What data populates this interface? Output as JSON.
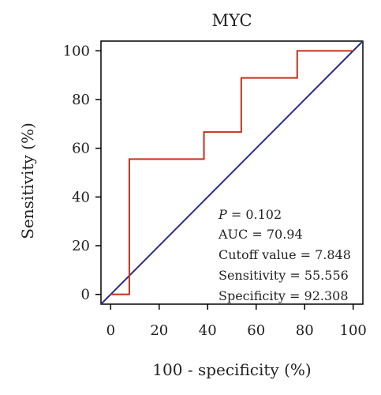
{
  "chart_data": {
    "type": "line",
    "title": "MYC",
    "xlabel": "100 - specificity (%)",
    "ylabel": "Sensitivity (%)",
    "xlim": [
      -4,
      104
    ],
    "ylim": [
      -4,
      104
    ],
    "xticks": [
      0,
      20,
      40,
      60,
      80,
      100
    ],
    "yticks": [
      0,
      20,
      40,
      60,
      80,
      100
    ],
    "grid": false,
    "series": [
      {
        "color": "#c4331a",
        "x": [
          0,
          7.69,
          7.69,
          38.46,
          38.46,
          53.85,
          53.85,
          76.92,
          76.92,
          100
        ],
        "y": [
          0,
          0,
          55.56,
          55.56,
          66.67,
          66.67,
          88.89,
          88.89,
          100,
          100
        ]
      },
      {
        "color": "#2b2a8c",
        "x": [
          -4,
          104
        ],
        "y": [
          -4,
          104
        ]
      }
    ],
    "annotations": {
      "p_label": "P",
      "p_value": " = 0.102",
      "auc": "AUC = 70.94",
      "cutoff": "Cutoff value = 7.848",
      "sensitivity": "Sensitivity = 55.556",
      "specificity": "Specificity = 92.308"
    }
  }
}
